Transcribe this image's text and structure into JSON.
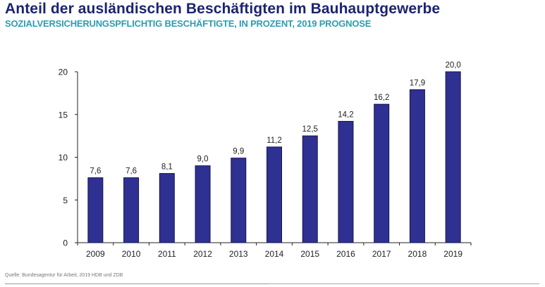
{
  "header": {
    "title": "Anteil der ausländischen Beschäftigten im Bauhauptgewerbe",
    "subtitle": "SOZIALVERSICHERUNGSPFLICHTIG BESCHÄFTIGTE, IN PROZENT, 2019 PROGNOSE"
  },
  "footer": {
    "source": "Quelle: Bundesagentur für Arbeit, 2019 HDB und ZDB"
  },
  "colors": {
    "title": "#1c2470",
    "subtitle": "#2a9db3",
    "bar_fill": "#2e3192",
    "bar_stroke": "#141650",
    "axis": "#222222"
  },
  "chart_data": {
    "type": "bar",
    "title": "Anteil der ausländischen Beschäftigten im Bauhauptgewerbe",
    "subtitle": "SOZIALVERSICHERUNGSPFLICHTIG BESCHÄFTIGTE, IN PROZENT, 2019 PROGNOSE",
    "xlabel": "",
    "ylabel": "",
    "categories": [
      "2009",
      "2010",
      "2011",
      "2012",
      "2013",
      "2014",
      "2015",
      "2016",
      "2017",
      "2018",
      "2019"
    ],
    "values": [
      7.6,
      7.6,
      8.1,
      9.0,
      9.9,
      11.2,
      12.5,
      14.2,
      16.2,
      17.9,
      20.0
    ],
    "value_labels": [
      "7,6",
      "7,6",
      "8,1",
      "9,0",
      "9,9",
      "11,2",
      "12,5",
      "14,2",
      "16,2",
      "17,9",
      "20,0"
    ],
    "ylim": [
      0,
      20
    ],
    "yticks": [
      0,
      5,
      10,
      15,
      20
    ],
    "ytick_labels": [
      "0",
      "5",
      "10",
      "15",
      "20"
    ],
    "grid": false,
    "legend": "none"
  }
}
